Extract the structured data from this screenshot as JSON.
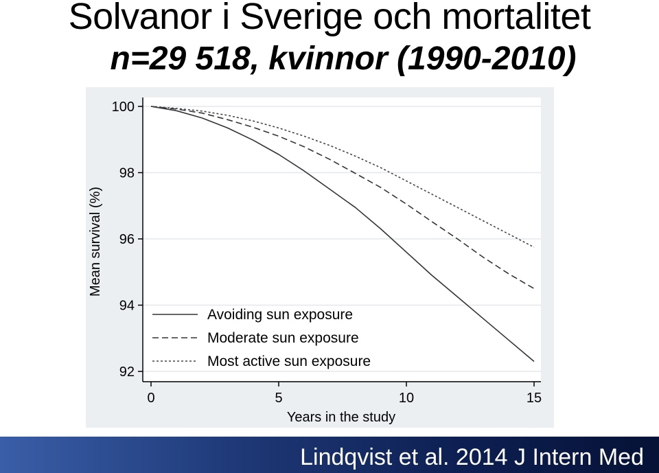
{
  "slide": {
    "title": "Solvanor i Sverige och mortalitet",
    "subtitle": "n=29 518, kvinnor (1990-2010)",
    "citation": "Lindqvist et al. 2014 J Intern Med"
  },
  "chart_data": {
    "type": "line",
    "xlabel": "Years in the study",
    "ylabel": "Mean survival (%)",
    "xlim": [
      0,
      15
    ],
    "ylim": [
      92,
      100
    ],
    "xticks": [
      0,
      5,
      10,
      15
    ],
    "yticks": [
      92,
      94,
      96,
      98,
      100
    ],
    "grid": "horizontal",
    "legend": "bottom-left",
    "x": [
      0,
      1,
      2,
      3,
      4,
      5,
      6,
      7,
      8,
      9,
      10,
      11,
      12,
      13,
      14,
      15
    ],
    "series": [
      {
        "name": "Avoiding sun exposure",
        "dash": "solid",
        "color": "#333333",
        "values": [
          100,
          99.87,
          99.65,
          99.35,
          98.98,
          98.55,
          98.05,
          97.5,
          96.95,
          96.3,
          95.6,
          94.9,
          94.25,
          93.6,
          92.95,
          92.3
        ]
      },
      {
        "name": "Moderate sun exposure",
        "dash": "dashed",
        "color": "#333333",
        "values": [
          100,
          99.92,
          99.8,
          99.6,
          99.37,
          99.1,
          98.78,
          98.4,
          97.98,
          97.55,
          97.05,
          96.52,
          96.0,
          95.45,
          94.95,
          94.5
        ]
      },
      {
        "name": "Most active sun exposure",
        "dash": "dotted",
        "color": "#444444",
        "values": [
          100,
          99.94,
          99.86,
          99.73,
          99.56,
          99.35,
          99.1,
          98.82,
          98.5,
          98.15,
          97.75,
          97.35,
          96.95,
          96.55,
          96.15,
          95.75
        ]
      }
    ]
  }
}
